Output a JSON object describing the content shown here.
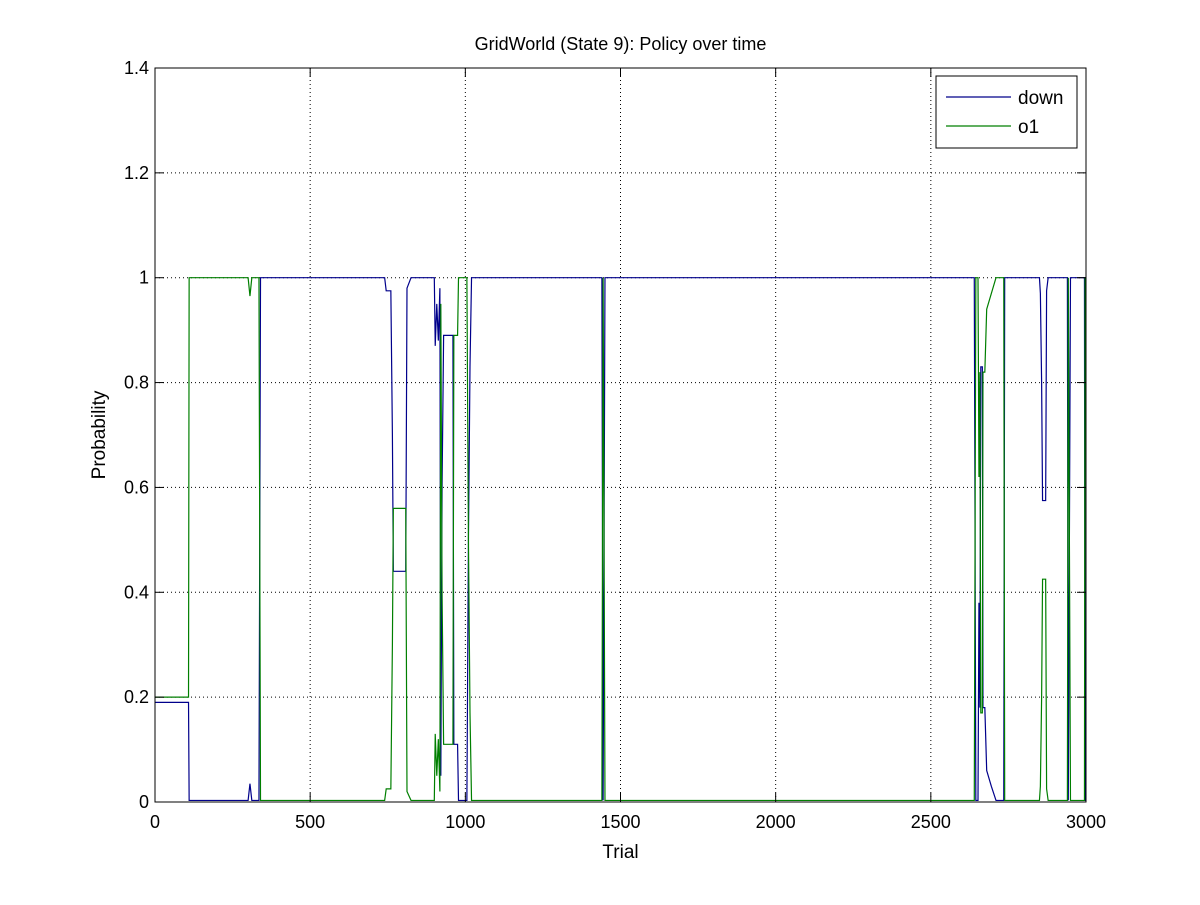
{
  "chart_data": {
    "type": "line",
    "title": "GridWorld (State 9): Policy over time",
    "xlabel": "Trial",
    "ylabel": "Probability",
    "xlim": [
      0,
      3000
    ],
    "ylim": [
      0,
      1.4
    ],
    "xticks": [
      0,
      500,
      1000,
      1500,
      2000,
      2500,
      3000
    ],
    "xtick_labels": [
      "0",
      "500",
      "1000",
      "1500",
      "2000",
      "2500",
      "3000"
    ],
    "yticks": [
      0,
      0.2,
      0.4,
      0.6,
      0.8,
      1,
      1.2,
      1.4
    ],
    "ytick_labels": [
      "0",
      "0.2",
      "0.4",
      "0.6",
      "0.8",
      "1",
      "1.2",
      "1.4"
    ],
    "grid": true,
    "grid_style": "dotted",
    "legend_position": "top-right",
    "series": [
      {
        "name": "down",
        "color": "#00008b",
        "points": [
          [
            0,
            0.19
          ],
          [
            108,
            0.19
          ],
          [
            110,
            0.003
          ],
          [
            300,
            0.003
          ],
          [
            306,
            0.035
          ],
          [
            312,
            0.003
          ],
          [
            335,
            0.003
          ],
          [
            340,
            1.0
          ],
          [
            740,
            1.0
          ],
          [
            745,
            0.975
          ],
          [
            760,
            0.975
          ],
          [
            765,
            0.7
          ],
          [
            768,
            0.44
          ],
          [
            808,
            0.44
          ],
          [
            812,
            0.98
          ],
          [
            825,
            1.0
          ],
          [
            900,
            1.0
          ],
          [
            903,
            0.87
          ],
          [
            908,
            0.95
          ],
          [
            913,
            0.88
          ],
          [
            918,
            0.98
          ],
          [
            921,
            0.05
          ],
          [
            925,
            0.6
          ],
          [
            930,
            0.89
          ],
          [
            960,
            0.89
          ],
          [
            963,
            0.11
          ],
          [
            975,
            0.11
          ],
          [
            978,
            0.003
          ],
          [
            1005,
            0.003
          ],
          [
            1010,
            0.5
          ],
          [
            1015,
            0.83
          ],
          [
            1020,
            1.0
          ],
          [
            1440,
            1.0
          ],
          [
            1444,
            0.003
          ],
          [
            1450,
            1.0
          ],
          [
            2640,
            1.0
          ],
          [
            2645,
            0.003
          ],
          [
            2652,
            0.003
          ],
          [
            2655,
            0.38
          ],
          [
            2658,
            0.18
          ],
          [
            2661,
            0.83
          ],
          [
            2666,
            0.83
          ],
          [
            2668,
            0.18
          ],
          [
            2674,
            0.18
          ],
          [
            2680,
            0.06
          ],
          [
            2695,
            0.03
          ],
          [
            2710,
            0.003
          ],
          [
            2735,
            0.003
          ],
          [
            2738,
            1.0
          ],
          [
            2850,
            1.0
          ],
          [
            2853,
            0.97
          ],
          [
            2857,
            0.8
          ],
          [
            2860,
            0.575
          ],
          [
            2870,
            0.575
          ],
          [
            2873,
            0.975
          ],
          [
            2878,
            1.0
          ],
          [
            2940,
            1.0
          ],
          [
            2943,
            0.003
          ],
          [
            2950,
            1.0
          ],
          [
            2995,
            1.0
          ],
          [
            2997,
            0.003
          ],
          [
            3000,
            0.003
          ]
        ]
      },
      {
        "name": "o1",
        "color": "#007f00",
        "points": [
          [
            0,
            0.2
          ],
          [
            108,
            0.2
          ],
          [
            110,
            1.0
          ],
          [
            300,
            1.0
          ],
          [
            306,
            0.965
          ],
          [
            312,
            1.0
          ],
          [
            335,
            1.0
          ],
          [
            340,
            0.003
          ],
          [
            740,
            0.003
          ],
          [
            745,
            0.025
          ],
          [
            760,
            0.025
          ],
          [
            765,
            0.3
          ],
          [
            768,
            0.56
          ],
          [
            808,
            0.56
          ],
          [
            812,
            0.02
          ],
          [
            825,
            0.003
          ],
          [
            900,
            0.003
          ],
          [
            903,
            0.13
          ],
          [
            908,
            0.05
          ],
          [
            913,
            0.12
          ],
          [
            918,
            0.02
          ],
          [
            921,
            0.95
          ],
          [
            925,
            0.4
          ],
          [
            930,
            0.11
          ],
          [
            960,
            0.11
          ],
          [
            963,
            0.89
          ],
          [
            975,
            0.89
          ],
          [
            978,
            1.0
          ],
          [
            1005,
            1.0
          ],
          [
            1010,
            0.5
          ],
          [
            1015,
            0.17
          ],
          [
            1020,
            0.003
          ],
          [
            1440,
            0.003
          ],
          [
            1444,
            1.0
          ],
          [
            1450,
            0.003
          ],
          [
            2640,
            0.003
          ],
          [
            2645,
            1.0
          ],
          [
            2652,
            1.0
          ],
          [
            2655,
            0.62
          ],
          [
            2658,
            0.82
          ],
          [
            2661,
            0.17
          ],
          [
            2666,
            0.17
          ],
          [
            2668,
            0.82
          ],
          [
            2674,
            0.82
          ],
          [
            2680,
            0.94
          ],
          [
            2695,
            0.97
          ],
          [
            2710,
            1.0
          ],
          [
            2735,
            1.0
          ],
          [
            2738,
            0.003
          ],
          [
            2850,
            0.003
          ],
          [
            2853,
            0.03
          ],
          [
            2857,
            0.2
          ],
          [
            2860,
            0.425
          ],
          [
            2870,
            0.425
          ],
          [
            2873,
            0.025
          ],
          [
            2878,
            0.003
          ],
          [
            2940,
            0.003
          ],
          [
            2943,
            1.0
          ],
          [
            2950,
            0.003
          ],
          [
            2995,
            0.003
          ],
          [
            2997,
            1.0
          ],
          [
            3000,
            1.0
          ]
        ]
      }
    ]
  }
}
